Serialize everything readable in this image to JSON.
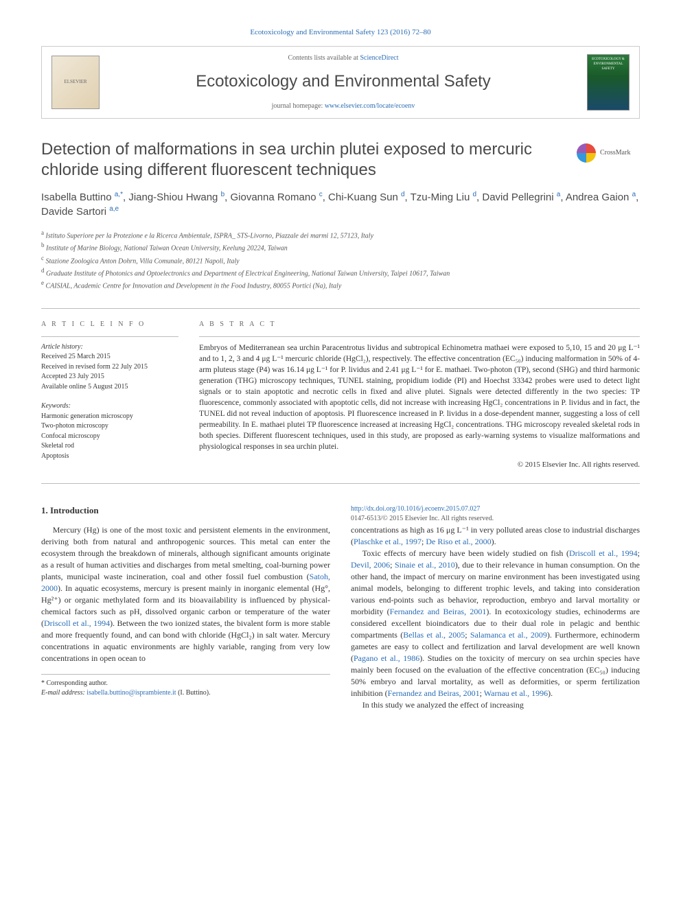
{
  "header": {
    "top_link": "Ecotoxicology and Environmental Safety 123 (2016) 72–80",
    "contents_prefix": "Contents lists available at ",
    "contents_link": "ScienceDirect",
    "journal_name": "Ecotoxicology and Environmental Safety",
    "homepage_prefix": "journal homepage: ",
    "homepage_link": "www.elsevier.com/locate/ecoenv",
    "elsevier_label": "ELSEVIER",
    "cover_label": "ECOTOXICOLOGY & ENVIRONMENTAL SAFETY"
  },
  "crossmark": {
    "label": "CrossMark"
  },
  "title": "Detection of malformations in sea urchin plutei exposed to mercuric chloride using different fluorescent techniques",
  "authors_html": "Isabella Buttino <sup class='sup-link'>a,*</sup>, Jiang-Shiou Hwang <sup class='sup-link'>b</sup>, Giovanna Romano <sup class='sup-link'>c</sup>, Chi-Kuang Sun <sup class='sup-link'>d</sup>, Tzu-Ming Liu <sup class='sup-link'>d</sup>, David Pellegrini <sup class='sup-link'>a</sup>, Andrea Gaion <sup class='sup-link'>a</sup>, Davide Sartori <sup class='sup-link'>a,e</sup>",
  "affiliations": [
    "a Istituto Superiore per la Protezione e la Ricerca Ambientale, ISPRA_ STS-Livorno, Piazzale dei marmi 12, 57123, Italy",
    "b Institute of Marine Biology, National Taiwan Ocean University, Keelung 20224, Taiwan",
    "c Stazione Zoologica Anton Dohrn, Villa Comunale, 80121 Napoli, Italy",
    "d Graduate Institute of Photonics and Optoelectronics and Department of Electrical Engineering, National Taiwan University, Taipei 10617, Taiwan",
    "e CAISIAL, Academic Centre for Innovation and Development in the Food Industry, 80055 Portici (Na), Italy"
  ],
  "article_info": {
    "heading": "A R T I C L E  I N F O",
    "history_label": "Article history:",
    "history": [
      "Received 25 March 2015",
      "Received in revised form 22 July 2015",
      "Accepted 23 July 2015",
      "Available online 5 August 2015"
    ],
    "keywords_label": "Keywords:",
    "keywords": [
      "Harmonic generation microscopy",
      "Two-photon microscopy",
      "Confocal microscopy",
      "Skeletal rod",
      "Apoptosis"
    ]
  },
  "abstract": {
    "heading": "A B S T R A C T",
    "text": "Embryos of Mediterranean sea urchin Paracentrotus lividus and subtropical Echinometra mathaei were exposed to 5,10, 15 and 20 μg L⁻¹ and to 1, 2, 3 and 4 μg L⁻¹ mercuric chloride (HgCl₂), respectively. The effective concentration (EC₅₀) inducing malformation in 50% of 4-arm pluteus stage (P4) was 16.14 μg L⁻¹ for P. lividus and 2.41 μg L⁻¹ for E. mathaei. Two-photon (TP), second (SHG) and third harmonic generation (THG) microscopy techniques, TUNEL staining, propidium iodide (PI) and Hoechst 33342 probes were used to detect light signals or to stain apoptotic and necrotic cells in fixed and alive plutei. Signals were detected differently in the two species: TP fluorescence, commonly associated with apoptotic cells, did not increase with increasing HgCl₂ concentrations in P. lividus and in fact, the TUNEL did not reveal induction of apoptosis. PI fluorescence increased in P. lividus in a dose-dependent manner, suggesting a loss of cell permeability. In E. mathaei plutei TP fluorescence increased at increasing HgCl₂ concentrations. THG microscopy revealed skeletal rods in both species. Different fluorescent techniques, used in this study, are proposed as early-warning systems to visualize malformations and physiological responses in sea urchin plutei.",
    "copyright": "© 2015 Elsevier Inc. All rights reserved."
  },
  "intro": {
    "heading": "1.  Introduction",
    "p1": "Mercury (Hg) is one of the most toxic and persistent elements in the environment, deriving both from natural and anthropogenic sources. This metal can enter the ecosystem through the breakdown of minerals, although significant amounts originate as a result of human activities and discharges from metal smelting, coal-burning power plants, municipal waste incineration, coal and other fossil fuel combustion (<span class='blue'>Satoh, 2000</span>). In aquatic ecosystems, mercury is present mainly in inorganic elemental (Hg°, Hg²⁺) or organic methylated form and its bioavailability is influenced by physical-chemical factors such as pH, dissolved organic carbon or temperature of the water (<span class='blue'>Driscoll et al., 1994</span>). Between the two ionized states, the bivalent form is more stable and more frequently found, and can bond with chloride (HgCl₂) in salt water. Mercury concentrations in aquatic environments are highly variable, ranging from very low concentrations in open ocean to",
    "p2": "concentrations as high as 16 μg L⁻¹ in very polluted areas close to industrial discharges (<span class='blue'>Plaschke et al., 1997</span>; <span class='blue'>De Riso et al., 2000</span>).",
    "p3": "Toxic effects of mercury have been widely studied on fish (<span class='blue'>Driscoll et al., 1994</span>; <span class='blue'>Devil, 2006</span>; <span class='blue'>Sinaie et al., 2010</span>), due to their relevance in human consumption. On the other hand, the impact of mercury on marine environment has been investigated using animal models, belonging to different trophic levels, and taking into consideration various end-points such as behavior, reproduction, embryo and larval mortality or morbidity (<span class='blue'>Fernandez and Beiras, 2001</span>). In ecotoxicology studies, echinoderms are considered excellent bioindicators due to their dual role in pelagic and benthic compartments (<span class='blue'>Bellas et al., 2005</span>; <span class='blue'>Salamanca et al., 2009</span>). Furthermore, echinoderm gametes are easy to collect and fertilization and larval development are well known (<span class='blue'>Pagano et al., 1986</span>). Studies on the toxicity of mercury on sea urchin species have mainly been focused on the evaluation of the effective concentration (EC₅₀) inducing 50% embryo and larval mortality, as well as deformities, or sperm fertilization inhibition (<span class='blue'>Fernandez and Beiras, 2001</span>; <span class='blue'>Warnau et al., 1996</span>).",
    "p4": "In  this  study  we  analyzed  the  effect  of  increasing"
  },
  "footnote": {
    "corr": "* Corresponding author.",
    "email_label": "E-mail address: ",
    "email": "isabella.buttino@isprambiente.it",
    "email_suffix": " (I. Buttino)."
  },
  "footer": {
    "doi": "http://dx.doi.org/10.1016/j.ecoenv.2015.07.027",
    "issn_line": "0147-6513/© 2015 Elsevier Inc. All rights reserved."
  },
  "colors": {
    "link": "#2a6db5",
    "text": "#333333",
    "rule": "#bbbbbb"
  }
}
